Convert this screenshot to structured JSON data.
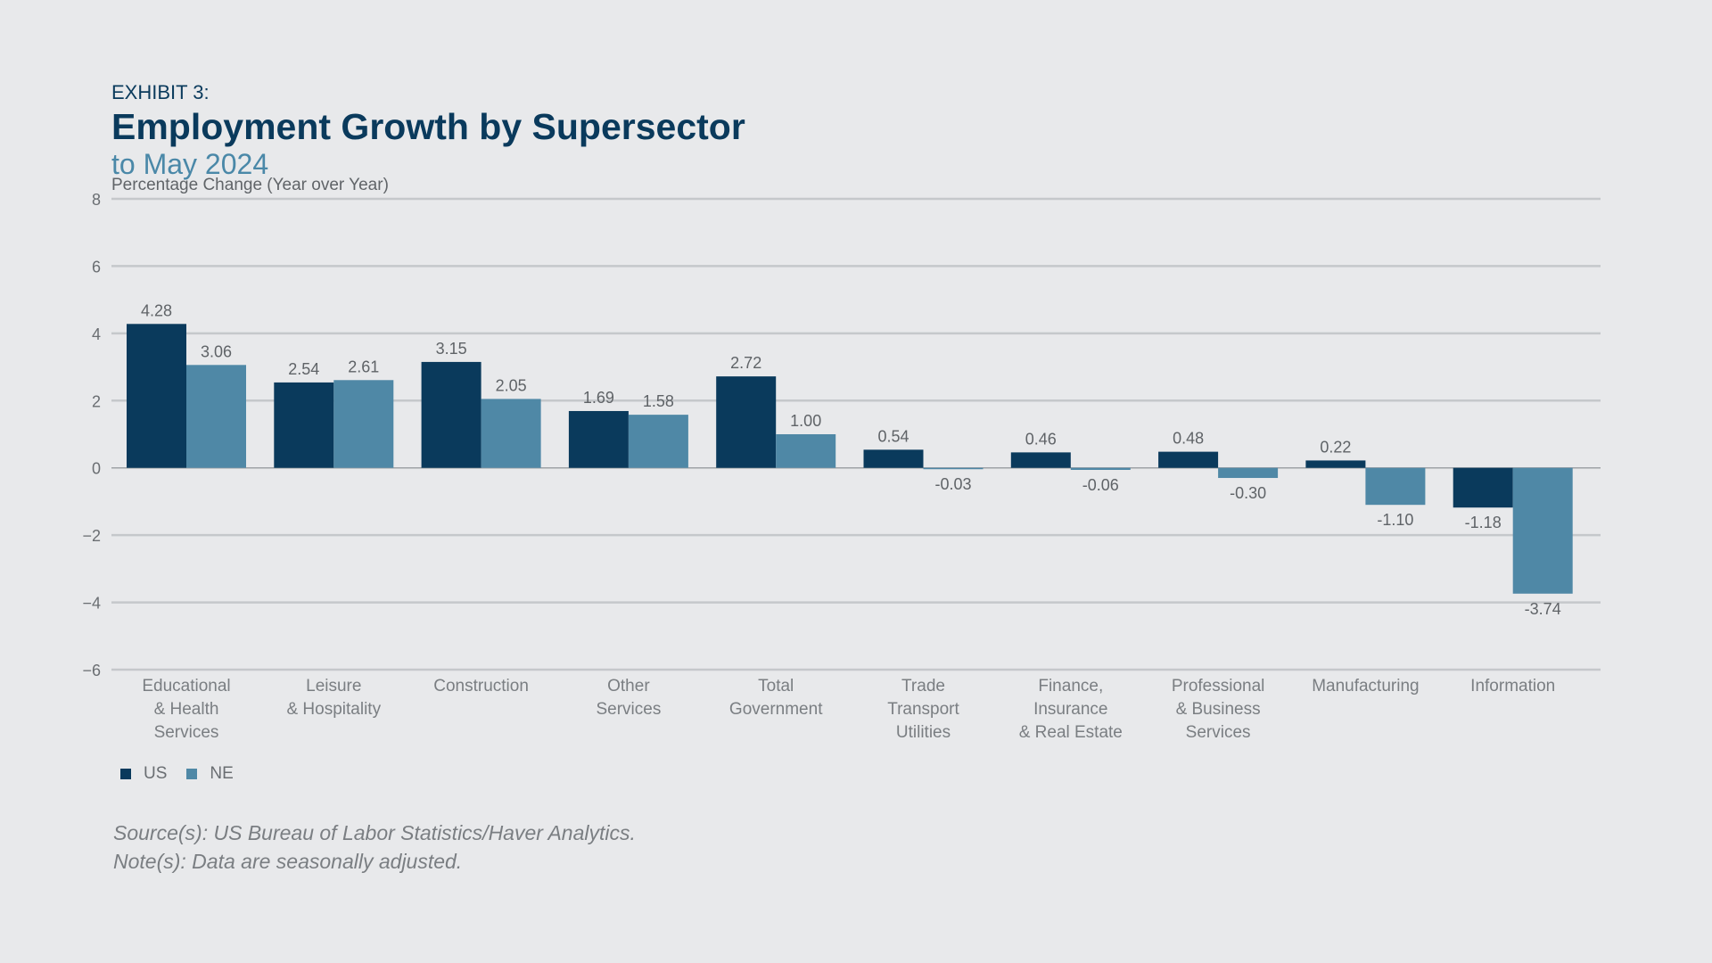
{
  "header": {
    "exhibit": "EXHIBIT 3:",
    "title": "Employment Growth by Supersector",
    "subtitle": "to May 2024"
  },
  "chart_data": {
    "type": "bar",
    "ylabel": "Percentage Change (Year over Year)",
    "ylim": [
      -6,
      8
    ],
    "yticks": [
      "8",
      "6",
      "4",
      "2",
      "0",
      "−2",
      "−4",
      "−6"
    ],
    "ytick_values": [
      8,
      6,
      4,
      2,
      0,
      -2,
      -4,
      -6
    ],
    "grid": true,
    "legend_position": "bottom-left",
    "categories": [
      [
        "Educational",
        "& Health",
        "Services"
      ],
      [
        "Leisure",
        "& Hospitality"
      ],
      [
        "Construction"
      ],
      [
        "Other",
        "Services"
      ],
      [
        "Total",
        "Government"
      ],
      [
        "Trade",
        "Transport",
        "Utilities"
      ],
      [
        "Finance,",
        "Insurance",
        "& Real Estate"
      ],
      [
        "Professional",
        "& Business",
        "Services"
      ],
      [
        "Manufacturing"
      ],
      [
        "Information"
      ]
    ],
    "series": [
      {
        "name": "US",
        "color": "#0a3a5c",
        "values": [
          4.28,
          2.54,
          3.15,
          1.69,
          2.72,
          0.54,
          0.46,
          0.48,
          0.22,
          -1.18
        ],
        "labels": [
          "4.28",
          "2.54",
          "3.15",
          "1.69",
          "2.72",
          "0.54",
          "0.46",
          "0.48",
          "0.22",
          "-1.18"
        ]
      },
      {
        "name": "NE",
        "color": "#4f88a6",
        "values": [
          3.06,
          2.61,
          2.05,
          1.58,
          1.0,
          -0.03,
          -0.06,
          -0.3,
          -1.1,
          -3.74
        ],
        "labels": [
          "3.06",
          "2.61",
          "2.05",
          "1.58",
          "1.00",
          "-0.03",
          "-0.06",
          "-0.30",
          "-1.10",
          "-3.74"
        ]
      }
    ]
  },
  "legend": {
    "items": [
      {
        "label": "US",
        "color": "#0a3a5c"
      },
      {
        "label": "NE",
        "color": "#4f88a6"
      }
    ]
  },
  "footer": {
    "source": "Source(s): US Bureau of Labor Statistics/Haver Analytics.",
    "note": "Note(s): Data are seasonally adjusted."
  }
}
